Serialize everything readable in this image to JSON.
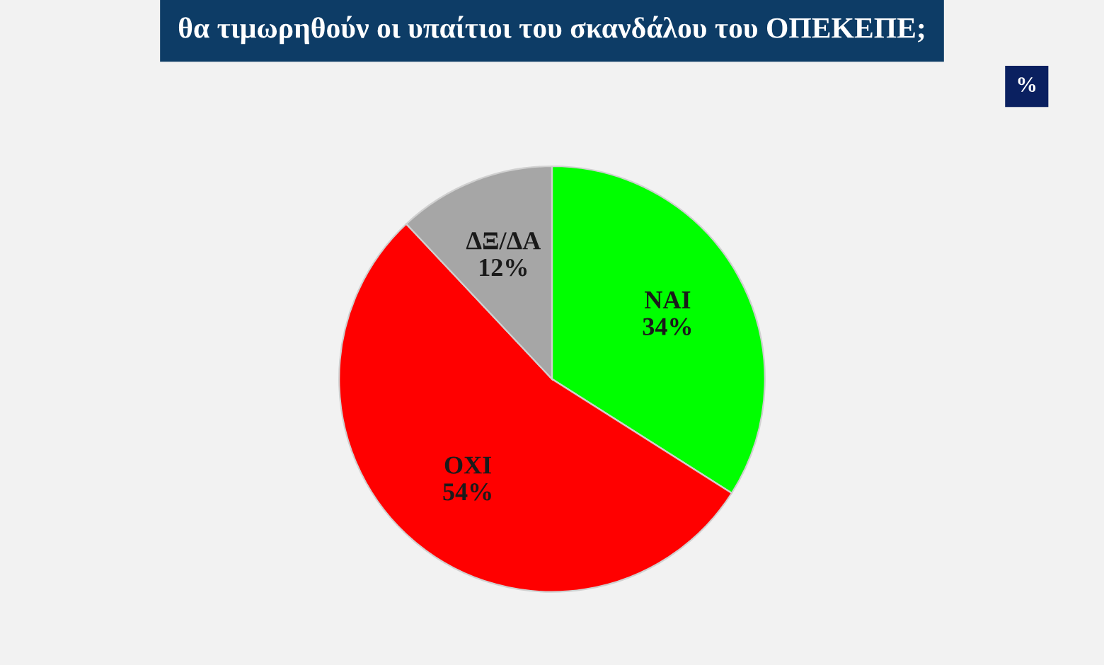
{
  "chart_data": {
    "type": "pie",
    "title": "θα τιμωρηθούν οι υπαίτιοι του σκανδάλου του ΟΠΕΚΕΠΕ;",
    "annotations": [
      "%"
    ],
    "categories": [
      "ΝΑΙ",
      "ΟΧΙ",
      "ΔΞ/ΔΑ"
    ],
    "values": [
      34,
      54,
      12
    ],
    "colors": [
      "#00ff00",
      "#ff0000",
      "#a6a6a6"
    ],
    "value_labels": [
      "34%",
      "54%",
      "12%"
    ]
  }
}
